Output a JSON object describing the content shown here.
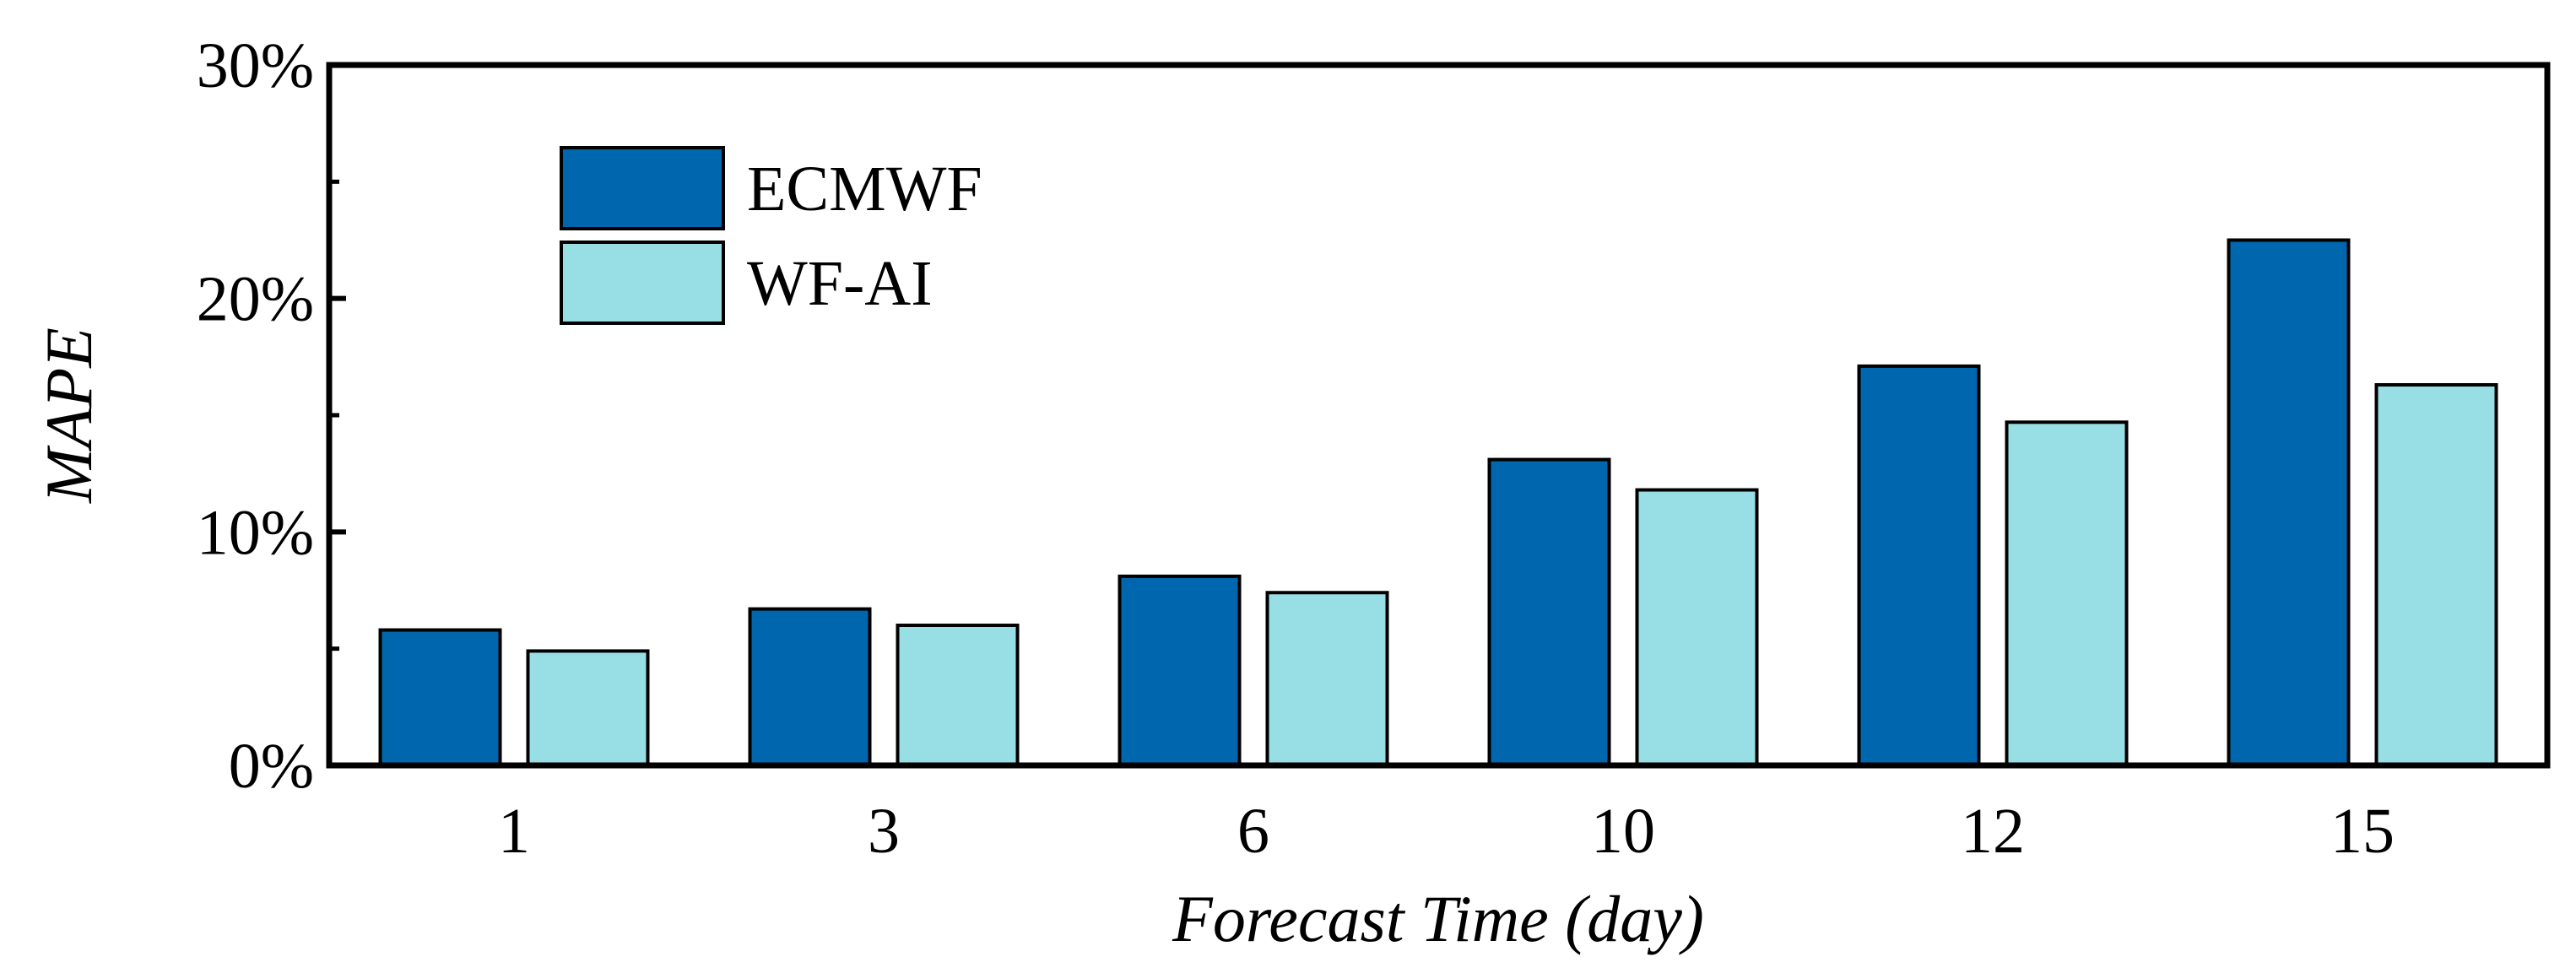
{
  "chart_data": {
    "type": "bar",
    "title": "",
    "xlabel": "Forecast Time (day)",
    "ylabel": "MAPE",
    "categories": [
      "1",
      "3",
      "6",
      "10",
      "12",
      "15"
    ],
    "series": [
      {
        "name": "ECMWF",
        "color": "#0066ad",
        "values": [
          5.8,
          6.7,
          8.1,
          13.1,
          17.1,
          22.5
        ]
      },
      {
        "name": "WF-AI",
        "color": "#97dfe5",
        "values": [
          4.9,
          6.0,
          7.4,
          11.8,
          14.7,
          16.3
        ]
      }
    ],
    "ylim": [
      0,
      30
    ],
    "yticks": [
      0,
      10,
      20,
      30
    ],
    "ytick_labels": [
      "0%",
      "10%",
      "20%",
      "30%"
    ],
    "minor_yticks": [
      5,
      15,
      25
    ],
    "grid": false,
    "legend": "top-left"
  }
}
